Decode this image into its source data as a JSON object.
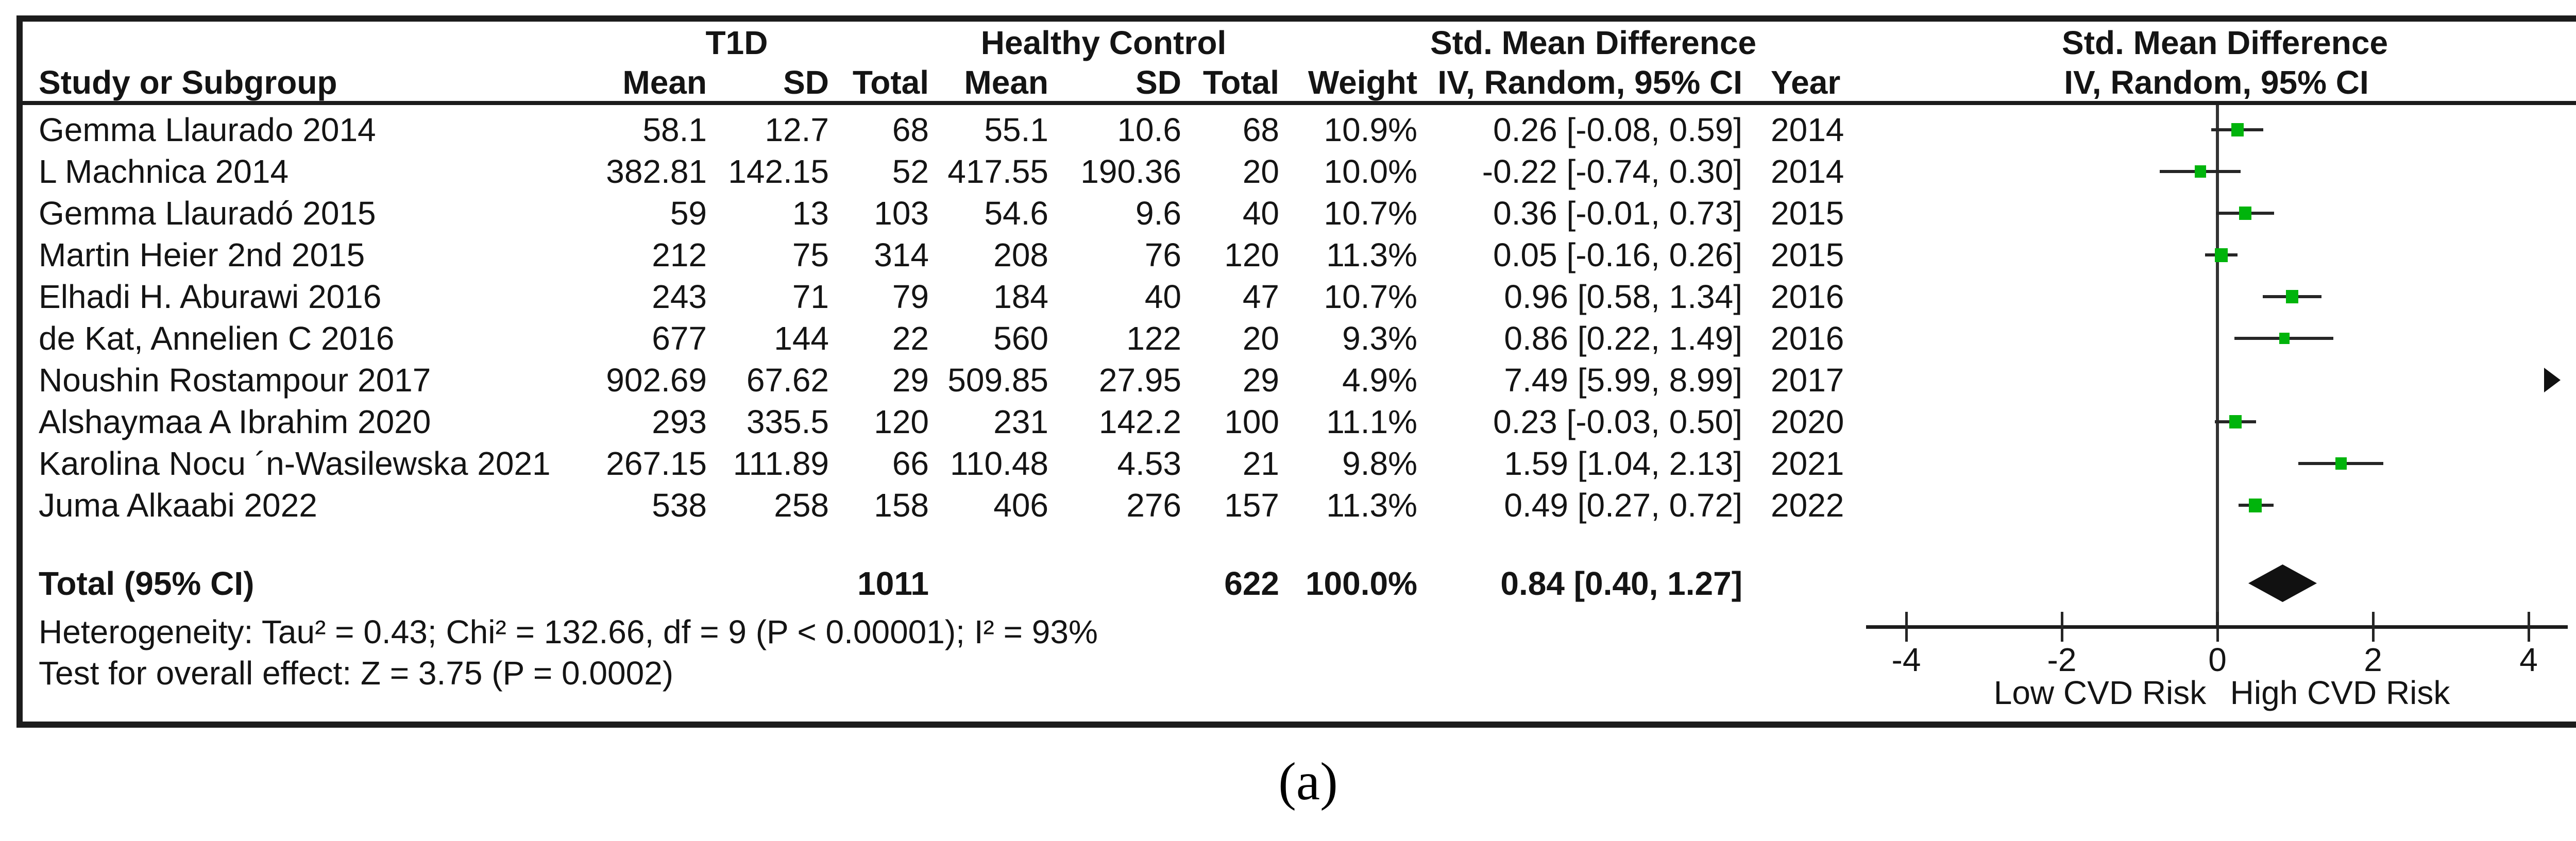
{
  "figure": {
    "caption": "(a)",
    "colors": {
      "marker_green": "#00b40c",
      "line_dark": "#262626",
      "frame": "#1c1c1c",
      "text": "#141414"
    }
  },
  "header": {
    "study": "Study or Subgroup",
    "group1": "T1D",
    "group2": "Healthy Control",
    "smd": "Std. Mean Difference",
    "method": "IV, Random, 95% CI",
    "mean": "Mean",
    "sd": "SD",
    "total": "Total",
    "weight": "Weight",
    "year": "Year"
  },
  "studies": [
    {
      "name": "Gemma Llaurado 2014",
      "t1d_mean": "58.1",
      "t1d_sd": "12.7",
      "t1d_total": "68",
      "hc_mean": "55.1",
      "hc_sd": "10.6",
      "hc_total": "68",
      "weight": "10.9%",
      "smd_ci": "0.26 [-0.08, 0.59]",
      "smd": 0.26,
      "ci_low": -0.08,
      "ci_high": 0.59,
      "year": "2014",
      "weight_val": 10.9,
      "off_scale": false
    },
    {
      "name": "L Machnica 2014",
      "t1d_mean": "382.81",
      "t1d_sd": "142.15",
      "t1d_total": "52",
      "hc_mean": "417.55",
      "hc_sd": "190.36",
      "hc_total": "20",
      "weight": "10.0%",
      "smd_ci": "-0.22 [-0.74, 0.30]",
      "smd": -0.22,
      "ci_low": -0.74,
      "ci_high": 0.3,
      "year": "2014",
      "weight_val": 10.0,
      "off_scale": false
    },
    {
      "name": "Gemma Llauradó 2015",
      "t1d_mean": "59",
      "t1d_sd": "13",
      "t1d_total": "103",
      "hc_mean": "54.6",
      "hc_sd": "9.6",
      "hc_total": "40",
      "weight": "10.7%",
      "smd_ci": "0.36 [-0.01, 0.73]",
      "smd": 0.36,
      "ci_low": -0.01,
      "ci_high": 0.73,
      "year": "2015",
      "weight_val": 10.7,
      "off_scale": false
    },
    {
      "name": "Martin Heier 2nd 2015",
      "t1d_mean": "212",
      "t1d_sd": "75",
      "t1d_total": "314",
      "hc_mean": "208",
      "hc_sd": "76",
      "hc_total": "120",
      "weight": "11.3%",
      "smd_ci": "0.05 [-0.16, 0.26]",
      "smd": 0.05,
      "ci_low": -0.16,
      "ci_high": 0.26,
      "year": "2015",
      "weight_val": 11.3,
      "off_scale": false
    },
    {
      "name": "Elhadi H. Aburawi 2016",
      "t1d_mean": "243",
      "t1d_sd": "71",
      "t1d_total": "79",
      "hc_mean": "184",
      "hc_sd": "40",
      "hc_total": "47",
      "weight": "10.7%",
      "smd_ci": "0.96 [0.58, 1.34]",
      "smd": 0.96,
      "ci_low": 0.58,
      "ci_high": 1.34,
      "year": "2016",
      "weight_val": 10.7,
      "off_scale": false
    },
    {
      "name": "de Kat, Annelien C 2016",
      "t1d_mean": "677",
      "t1d_sd": "144",
      "t1d_total": "22",
      "hc_mean": "560",
      "hc_sd": "122",
      "hc_total": "20",
      "weight": "9.3%",
      "smd_ci": "0.86 [0.22, 1.49]",
      "smd": 0.86,
      "ci_low": 0.22,
      "ci_high": 1.49,
      "year": "2016",
      "weight_val": 9.3,
      "off_scale": false
    },
    {
      "name": "Noushin Rostampour 2017",
      "t1d_mean": "902.69",
      "t1d_sd": "67.62",
      "t1d_total": "29",
      "hc_mean": "509.85",
      "hc_sd": "27.95",
      "hc_total": "29",
      "weight": "4.9%",
      "smd_ci": "7.49 [5.99, 8.99]",
      "smd": 7.49,
      "ci_low": 5.99,
      "ci_high": 8.99,
      "year": "2017",
      "weight_val": 4.9,
      "off_scale": true
    },
    {
      "name": "Alshaymaa A Ibrahim 2020",
      "t1d_mean": "293",
      "t1d_sd": "335.5",
      "t1d_total": "120",
      "hc_mean": "231",
      "hc_sd": "142.2",
      "hc_total": "100",
      "weight": "11.1%",
      "smd_ci": "0.23 [-0.03, 0.50]",
      "smd": 0.23,
      "ci_low": -0.03,
      "ci_high": 0.5,
      "year": "2020",
      "weight_val": 11.1,
      "off_scale": false
    },
    {
      "name": "Karolina Nocu ´n-Wasilewska 2021",
      "t1d_mean": "267.15",
      "t1d_sd": "111.89",
      "t1d_total": "66",
      "hc_mean": "110.48",
      "hc_sd": "4.53",
      "hc_total": "21",
      "weight": "9.8%",
      "smd_ci": "1.59 [1.04, 2.13]",
      "smd": 1.59,
      "ci_low": 1.04,
      "ci_high": 2.13,
      "year": "2021",
      "weight_val": 9.8,
      "off_scale": false
    },
    {
      "name": "Juma Alkaabi 2022",
      "t1d_mean": "538",
      "t1d_sd": "258",
      "t1d_total": "158",
      "hc_mean": "406",
      "hc_sd": "276",
      "hc_total": "157",
      "weight": "11.3%",
      "smd_ci": "0.49 [0.27, 0.72]",
      "smd": 0.49,
      "ci_low": 0.27,
      "ci_high": 0.72,
      "year": "2022",
      "weight_val": 11.3,
      "off_scale": false
    }
  ],
  "total": {
    "label": "Total (95% CI)",
    "t1d_total": "1011",
    "hc_total": "622",
    "weight": "100.0%",
    "smd_ci": "0.84 [0.40, 1.27]",
    "smd": 0.84,
    "ci_low": 0.4,
    "ci_high": 1.27
  },
  "footer": {
    "heterogeneity": "Heterogeneity: Tau² = 0.43; Chi² = 132.66, df = 9 (P < 0.00001); I² = 93%",
    "overall": "Test for overall effect: Z = 3.75 (P = 0.0002)"
  },
  "axis": {
    "ticks": [
      "-4",
      "-2",
      "0",
      "2",
      "4"
    ],
    "low_label": "Low CVD Risk",
    "high_label": "High CVD Risk"
  },
  "chart_data": {
    "type": "forest",
    "title": "Std. Mean Difference — IV, Random, 95% CI (T1D vs Healthy Control)",
    "x_axis": {
      "range": [
        -4,
        4
      ],
      "ticks": [
        -4,
        -2,
        0,
        2,
        4
      ],
      "left_label": "Low CVD Risk",
      "right_label": "High CVD Risk"
    },
    "studies": [
      {
        "name": "Gemma Llaurado 2014",
        "year": 2014,
        "smd": 0.26,
        "ci": [
          -0.08,
          0.59
        ],
        "weight_pct": 10.9,
        "t1d": {
          "mean": 58.1,
          "sd": 12.7,
          "n": 68
        },
        "control": {
          "mean": 55.1,
          "sd": 10.6,
          "n": 68
        }
      },
      {
        "name": "L Machnica 2014",
        "year": 2014,
        "smd": -0.22,
        "ci": [
          -0.74,
          0.3
        ],
        "weight_pct": 10.0,
        "t1d": {
          "mean": 382.81,
          "sd": 142.15,
          "n": 52
        },
        "control": {
          "mean": 417.55,
          "sd": 190.36,
          "n": 20
        }
      },
      {
        "name": "Gemma Llauradó 2015",
        "year": 2015,
        "smd": 0.36,
        "ci": [
          -0.01,
          0.73
        ],
        "weight_pct": 10.7,
        "t1d": {
          "mean": 59,
          "sd": 13,
          "n": 103
        },
        "control": {
          "mean": 54.6,
          "sd": 9.6,
          "n": 40
        }
      },
      {
        "name": "Martin Heier 2nd 2015",
        "year": 2015,
        "smd": 0.05,
        "ci": [
          -0.16,
          0.26
        ],
        "weight_pct": 11.3,
        "t1d": {
          "mean": 212,
          "sd": 75,
          "n": 314
        },
        "control": {
          "mean": 208,
          "sd": 76,
          "n": 120
        }
      },
      {
        "name": "Elhadi H. Aburawi 2016",
        "year": 2016,
        "smd": 0.96,
        "ci": [
          0.58,
          1.34
        ],
        "weight_pct": 10.7,
        "t1d": {
          "mean": 243,
          "sd": 71,
          "n": 79
        },
        "control": {
          "mean": 184,
          "sd": 40,
          "n": 47
        }
      },
      {
        "name": "de Kat, Annelien C 2016",
        "year": 2016,
        "smd": 0.86,
        "ci": [
          0.22,
          1.49
        ],
        "weight_pct": 9.3,
        "t1d": {
          "mean": 677,
          "sd": 144,
          "n": 22
        },
        "control": {
          "mean": 560,
          "sd": 122,
          "n": 20
        }
      },
      {
        "name": "Noushin Rostampour 2017",
        "year": 2017,
        "smd": 7.49,
        "ci": [
          5.99,
          8.99
        ],
        "weight_pct": 4.9,
        "off_scale_right": true,
        "t1d": {
          "mean": 902.69,
          "sd": 67.62,
          "n": 29
        },
        "control": {
          "mean": 509.85,
          "sd": 27.95,
          "n": 29
        }
      },
      {
        "name": "Alshaymaa A Ibrahim 2020",
        "year": 2020,
        "smd": 0.23,
        "ci": [
          -0.03,
          0.5
        ],
        "weight_pct": 11.1,
        "t1d": {
          "mean": 293,
          "sd": 335.5,
          "n": 120
        },
        "control": {
          "mean": 231,
          "sd": 142.2,
          "n": 100
        }
      },
      {
        "name": "Karolina Nocu ´n-Wasilewska 2021",
        "year": 2021,
        "smd": 1.59,
        "ci": [
          1.04,
          2.13
        ],
        "weight_pct": 9.8,
        "t1d": {
          "mean": 267.15,
          "sd": 111.89,
          "n": 66
        },
        "control": {
          "mean": 110.48,
          "sd": 4.53,
          "n": 21
        }
      },
      {
        "name": "Juma Alkaabi 2022",
        "year": 2022,
        "smd": 0.49,
        "ci": [
          0.27,
          0.72
        ],
        "weight_pct": 11.3,
        "t1d": {
          "mean": 538,
          "sd": 258,
          "n": 158
        },
        "control": {
          "mean": 406,
          "sd": 276,
          "n": 157
        }
      }
    ],
    "total": {
      "smd": 0.84,
      "ci": [
        0.4,
        1.27
      ],
      "weight_pct": 100.0,
      "t1d_n": 1011,
      "control_n": 622
    },
    "heterogeneity": {
      "tau2": 0.43,
      "chi2": 132.66,
      "df": 9,
      "p": "< 0.00001",
      "i2_pct": 93
    },
    "overall_effect": {
      "z": 3.75,
      "p": 0.0002
    }
  }
}
